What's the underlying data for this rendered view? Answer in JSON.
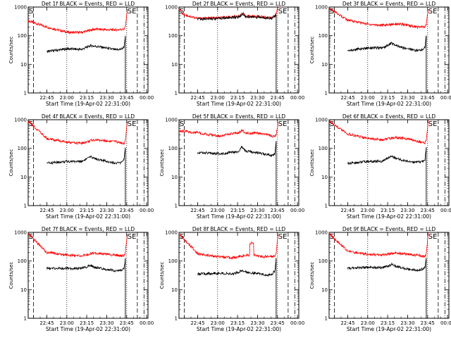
{
  "figure": {
    "background": "#ffffff"
  },
  "chart_data": [
    {
      "type": "line",
      "title": "Det 1f BLACK = Events, RED = LLD",
      "xlabel": "Start Time (19-Apr-02 22:31:00)",
      "ylabel": "Counts/sec",
      "xticks": [
        "22:45",
        "23:00",
        "23:15",
        "23:30",
        "23:45",
        "00:00"
      ],
      "yticks": [
        "1",
        "10",
        "100",
        "1000"
      ],
      "yscale": "log",
      "ylim": [
        1,
        1000
      ],
      "markers": [
        "S",
        "SE"
      ],
      "series": [
        {
          "color": "#ff0000",
          "x": [
            0,
            14,
            30,
            40,
            50,
            60,
            66,
            72,
            73,
            74.5
          ],
          "y": [
            330,
            200,
            130,
            130,
            170,
            160,
            160,
            170,
            200,
            820
          ]
        },
        {
          "color": "#000000",
          "x": [
            14,
            30,
            40,
            47,
            50,
            55,
            60,
            66,
            70,
            72,
            73
          ],
          "y": [
            28,
            35,
            33,
            45,
            43,
            40,
            36,
            32,
            34,
            40,
            100
          ]
        }
      ]
    },
    {
      "type": "line",
      "title": "Det 2f BLACK = Events, RED = LLD",
      "xlabel": "Start Time (19-Apr-02 22:31:00)",
      "ylabel": "",
      "xticks": [
        "22:45",
        "23:00",
        "23:15",
        "23:30",
        "23:45",
        "00:00"
      ],
      "yticks": [
        "1",
        "10",
        "100",
        "1000"
      ],
      "yscale": "log",
      "ylim": [
        1,
        1000
      ],
      "markers": [
        "S",
        "SE"
      ],
      "series": [
        {
          "color": "#ff0000",
          "x": [
            0,
            3,
            14,
            30,
            45,
            48,
            50,
            60,
            70,
            73,
            74.5
          ],
          "y": [
            900,
            560,
            400,
            420,
            480,
            600,
            480,
            470,
            420,
            600,
            1000
          ]
        },
        {
          "color": "#000000",
          "x": [
            14,
            30,
            45,
            48,
            50,
            60,
            70,
            73
          ],
          "y": [
            380,
            400,
            450,
            580,
            460,
            440,
            400,
            540
          ]
        }
      ]
    },
    {
      "type": "line",
      "title": "Det 3f BLACK = Events, RED = LLD",
      "xlabel": "Start Time (19-Apr-02 22:31:00)",
      "ylabel": "Counts/sec",
      "xticks": [
        "22:45",
        "23:00",
        "23:15",
        "23:30",
        "23:45",
        "00:00"
      ],
      "yticks": [
        "1",
        "10",
        "100",
        "1000"
      ],
      "yscale": "log",
      "ylim": [
        1,
        1000
      ],
      "markers": [
        "S",
        "SE"
      ],
      "series": [
        {
          "color": "#ff0000",
          "x": [
            0,
            14,
            30,
            40,
            50,
            60,
            66,
            72,
            73,
            74.5
          ],
          "y": [
            900,
            350,
            250,
            230,
            260,
            230,
            200,
            200,
            240,
            900
          ]
        },
        {
          "color": "#000000",
          "x": [
            14,
            30,
            40,
            47,
            50,
            55,
            60,
            66,
            70,
            72,
            73
          ],
          "y": [
            30,
            38,
            37,
            55,
            45,
            38,
            35,
            30,
            32,
            40,
            100
          ]
        }
      ]
    },
    {
      "type": "line",
      "title": "Det 4f BLACK = Events, RED = LLD",
      "xlabel": "Start Time (19-Apr-02 22:31:00)",
      "ylabel": "Counts/sec",
      "xticks": [
        "22:45",
        "23:00",
        "23:15",
        "23:30",
        "23:45",
        "00:00"
      ],
      "yticks": [
        "1",
        "10",
        "100",
        "1000"
      ],
      "yscale": "log",
      "ylim": [
        1,
        1000
      ],
      "markers": [
        "S",
        "SE"
      ],
      "series": [
        {
          "color": "#ff0000",
          "x": [
            0,
            14,
            30,
            40,
            50,
            60,
            66,
            72,
            73,
            74.5
          ],
          "y": [
            900,
            220,
            160,
            150,
            200,
            180,
            170,
            150,
            180,
            900
          ]
        },
        {
          "color": "#000000",
          "x": [
            14,
            30,
            40,
            47,
            50,
            55,
            60,
            66,
            70,
            72,
            73
          ],
          "y": [
            30,
            35,
            35,
            50,
            45,
            38,
            35,
            30,
            32,
            40,
            100
          ]
        }
      ]
    },
    {
      "type": "line",
      "title": "Det 5f BLACK = Events, RED = LLD",
      "xlabel": "Start Time (19-Apr-02 22:31:00)",
      "ylabel": "Counts/sec",
      "xticks": [
        "22:45",
        "23:00",
        "23:15",
        "23:30",
        "23:45",
        "00:00"
      ],
      "yticks": [
        "1",
        "10",
        "100",
        "1000"
      ],
      "yscale": "log",
      "ylim": [
        1,
        1000
      ],
      "markers": [
        "S",
        "SE"
      ],
      "series": [
        {
          "color": "#ff0000",
          "x": [
            0,
            14,
            30,
            45,
            47,
            50,
            60,
            66,
            72,
            73,
            74.5
          ],
          "y": [
            420,
            350,
            270,
            350,
            420,
            350,
            330,
            300,
            250,
            300,
            800
          ]
        },
        {
          "color": "#000000",
          "x": [
            14,
            30,
            45,
            47,
            50,
            60,
            66,
            70,
            72,
            73
          ],
          "y": [
            70,
            65,
            75,
            110,
            80,
            70,
            60,
            55,
            65,
            180
          ]
        }
      ]
    },
    {
      "type": "line",
      "title": "Det 6f BLACK = Events, RED = LLD",
      "xlabel": "Start Time (19-Apr-02 22:31:00)",
      "ylabel": "Counts/sec",
      "xticks": [
        "22:45",
        "23:00",
        "23:15",
        "23:30",
        "23:45",
        "00:00"
      ],
      "yticks": [
        "1",
        "10",
        "100",
        "1000"
      ],
      "yscale": "log",
      "ylim": [
        1,
        1000
      ],
      "markers": [
        "S",
        "SE"
      ],
      "series": [
        {
          "color": "#ff0000",
          "x": [
            0,
            14,
            30,
            40,
            50,
            60,
            66,
            72,
            73,
            74.5
          ],
          "y": [
            900,
            320,
            220,
            200,
            240,
            210,
            180,
            150,
            200,
            900
          ]
        },
        {
          "color": "#000000",
          "x": [
            14,
            30,
            40,
            47,
            50,
            55,
            60,
            66,
            70,
            72,
            73
          ],
          "y": [
            30,
            35,
            35,
            55,
            45,
            38,
            35,
            32,
            35,
            40,
            110
          ]
        }
      ]
    },
    {
      "type": "line",
      "title": "Det 7f BLACK = Events, RED = LLD",
      "xlabel": "Start Time (19-Apr-02 22:31:00)",
      "ylabel": "Counts/sec",
      "xticks": [
        "22:45",
        "23:00",
        "23:15",
        "23:30",
        "23:45",
        "00:00"
      ],
      "yticks": [
        "1",
        "10",
        "100",
        "1000"
      ],
      "yscale": "log",
      "ylim": [
        1,
        1000
      ],
      "markers": [
        "S",
        "SE"
      ],
      "series": [
        {
          "color": "#ff0000",
          "x": [
            0,
            14,
            30,
            40,
            50,
            60,
            66,
            72,
            73,
            74.5
          ],
          "y": [
            900,
            200,
            160,
            150,
            190,
            170,
            160,
            150,
            190,
            900
          ]
        },
        {
          "color": "#000000",
          "x": [
            14,
            30,
            40,
            47,
            50,
            55,
            60,
            66,
            70,
            72,
            73
          ],
          "y": [
            55,
            55,
            55,
            70,
            60,
            55,
            50,
            45,
            48,
            55,
            120
          ]
        }
      ]
    },
    {
      "type": "line",
      "title": "Det 8f BLACK = Events, RED = LLD",
      "xlabel": "Start Time (19-Apr-02 22:31:00)",
      "ylabel": "Counts/sec",
      "xticks": [
        "22:45",
        "23:00",
        "23:15",
        "23:30",
        "23:45",
        "00:00"
      ],
      "yticks": [
        "1",
        "10",
        "100",
        "1000"
      ],
      "yscale": "log",
      "ylim": [
        1,
        1000
      ],
      "markers": [
        "S",
        "SE"
      ],
      "series": [
        {
          "color": "#ff0000",
          "x": [
            0,
            14,
            30,
            40,
            50,
            53,
            53.2,
            56,
            56.2,
            60,
            66,
            72,
            73,
            74.5
          ],
          "y": [
            900,
            180,
            140,
            130,
            160,
            160,
            420,
            420,
            160,
            150,
            140,
            150,
            200,
            900
          ]
        },
        {
          "color": "#000000",
          "x": [
            14,
            30,
            40,
            47,
            50,
            55,
            60,
            66,
            70,
            72,
            73
          ],
          "y": [
            35,
            38,
            35,
            45,
            42,
            38,
            36,
            32,
            35,
            45,
            120
          ]
        }
      ]
    },
    {
      "type": "line",
      "title": "Det 9f BLACK = Events, RED = LLD",
      "xlabel": "Start Time (19-Apr-02 22:31:00)",
      "ylabel": "Counts/sec",
      "xticks": [
        "22:45",
        "23:00",
        "23:15",
        "23:30",
        "23:45",
        "00:00"
      ],
      "yticks": [
        "1",
        "10",
        "100",
        "1000"
      ],
      "yscale": "log",
      "ylim": [
        1,
        1000
      ],
      "markers": [
        "S",
        "SE"
      ],
      "series": [
        {
          "color": "#ff0000",
          "x": [
            0,
            14,
            30,
            40,
            50,
            60,
            66,
            72,
            73,
            74.5
          ],
          "y": [
            900,
            220,
            170,
            160,
            190,
            170,
            160,
            140,
            190,
            900
          ]
        },
        {
          "color": "#000000",
          "x": [
            14,
            30,
            40,
            47,
            50,
            55,
            60,
            66,
            70,
            72,
            73
          ],
          "y": [
            55,
            60,
            58,
            75,
            65,
            58,
            52,
            48,
            52,
            60,
            120
          ]
        }
      ]
    }
  ]
}
